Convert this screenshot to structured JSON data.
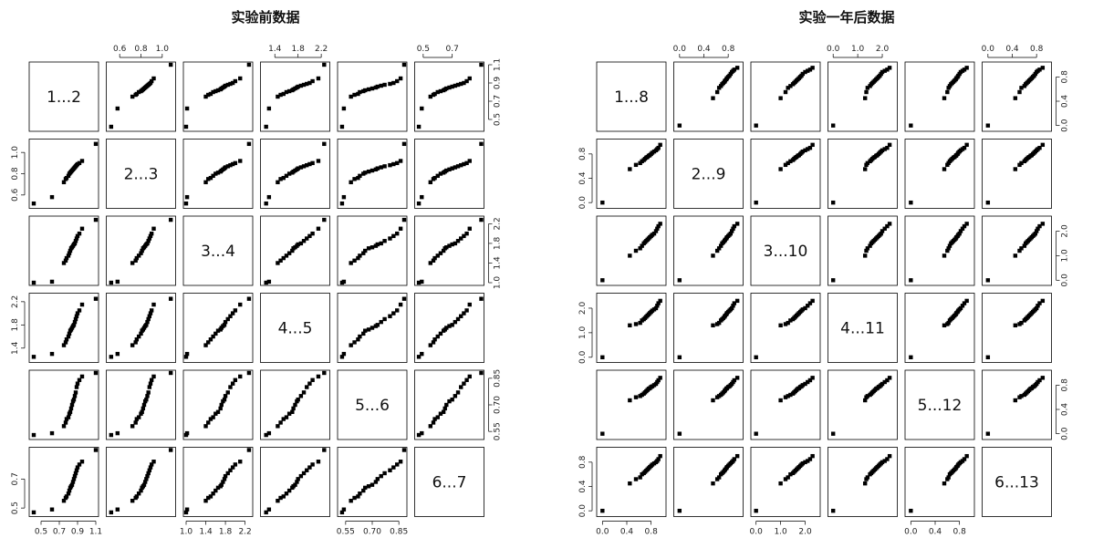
{
  "chart_data": [
    {
      "type": "scatter",
      "title": "实验前数据",
      "variables": [
        "1...2",
        "2...3",
        "3...4",
        "4...5",
        "5...6",
        "6...7"
      ],
      "ranges": [
        [
          0.4,
          1.1
        ],
        [
          0.5,
          1.1
        ],
        [
          1.0,
          2.3
        ],
        [
          1.2,
          2.3
        ],
        [
          0.52,
          0.88
        ],
        [
          0.46,
          0.9
        ]
      ],
      "tick_labels": [
        [
          "0.5",
          "0.7",
          "0.9",
          "1.1"
        ],
        [
          "0.6",
          "0.8",
          "1.0"
        ],
        [
          "1.0",
          "1.4",
          "1.8",
          "2.2"
        ],
        [
          "1.4",
          "1.8",
          "2.2"
        ],
        [
          "0.55",
          "0.70",
          "0.85"
        ],
        [
          "0.5",
          "0.7"
        ]
      ],
      "observations": [
        [
          0.42,
          0.52,
          1.0,
          1.25,
          0.53,
          0.47
        ],
        [
          0.62,
          0.58,
          1.02,
          1.3,
          0.54,
          0.49
        ],
        [
          0.75,
          0.72,
          1.4,
          1.45,
          0.58,
          0.55
        ],
        [
          0.77,
          0.75,
          1.45,
          1.5,
          0.6,
          0.57
        ],
        [
          0.78,
          0.76,
          1.5,
          1.55,
          0.62,
          0.58
        ],
        [
          0.8,
          0.78,
          1.55,
          1.6,
          0.63,
          0.6
        ],
        [
          0.81,
          0.8,
          1.6,
          1.65,
          0.65,
          0.62
        ],
        [
          0.82,
          0.81,
          1.65,
          1.7,
          0.66,
          0.64
        ],
        [
          0.83,
          0.82,
          1.7,
          1.72,
          0.68,
          0.65
        ],
        [
          0.84,
          0.83,
          1.72,
          1.75,
          0.7,
          0.66
        ],
        [
          0.85,
          0.84,
          1.75,
          1.78,
          0.72,
          0.68
        ],
        [
          0.86,
          0.85,
          1.78,
          1.8,
          0.73,
          0.7
        ],
        [
          0.87,
          0.86,
          1.8,
          1.85,
          0.75,
          0.72
        ],
        [
          0.88,
          0.87,
          1.85,
          1.9,
          0.77,
          0.74
        ],
        [
          0.89,
          0.88,
          1.9,
          1.95,
          0.8,
          0.76
        ],
        [
          0.9,
          0.89,
          1.95,
          2.0,
          0.82,
          0.78
        ],
        [
          0.92,
          0.9,
          2.0,
          2.05,
          0.84,
          0.8
        ],
        [
          0.95,
          0.92,
          2.1,
          2.15,
          0.86,
          0.82
        ],
        [
          1.1,
          1.08,
          2.28,
          2.25,
          0.88,
          0.9
        ]
      ]
    },
    {
      "type": "scatter",
      "title": "实验一年后数据",
      "variables": [
        "1...8",
        "2...9",
        "3...10",
        "4...11",
        "5...12",
        "6...13"
      ],
      "ranges": [
        [
          -0.05,
          1.0
        ],
        [
          -0.05,
          1.0
        ],
        [
          -0.1,
          2.5
        ],
        [
          -0.1,
          2.5
        ],
        [
          -0.05,
          1.0
        ],
        [
          -0.05,
          1.0
        ]
      ],
      "tick_labels": [
        [
          "0.0",
          "0.4",
          "0.8"
        ],
        [
          "0.0",
          "0.4",
          "0.8"
        ],
        [
          "0.0",
          "1.0",
          "2.0"
        ],
        [
          "0.0",
          "1.0",
          "2.0"
        ],
        [
          "0.0",
          "0.4",
          "0.8"
        ],
        [
          "0.0",
          "0.4",
          "0.8"
        ]
      ],
      "observations": [
        [
          0.0,
          0.0,
          0.0,
          0.0,
          0.0,
          0.0
        ],
        [
          0.45,
          0.55,
          1.0,
          1.3,
          0.55,
          0.45
        ],
        [
          0.55,
          0.62,
          1.2,
          1.35,
          0.6,
          0.52
        ],
        [
          0.62,
          0.65,
          1.3,
          1.4,
          0.62,
          0.55
        ],
        [
          0.65,
          0.68,
          1.4,
          1.5,
          0.64,
          0.6
        ],
        [
          0.68,
          0.7,
          1.5,
          1.55,
          0.66,
          0.62
        ],
        [
          0.7,
          0.72,
          1.55,
          1.6,
          0.68,
          0.64
        ],
        [
          0.72,
          0.74,
          1.6,
          1.65,
          0.7,
          0.66
        ],
        [
          0.74,
          0.75,
          1.65,
          1.7,
          0.72,
          0.68
        ],
        [
          0.76,
          0.77,
          1.7,
          1.75,
          0.74,
          0.7
        ],
        [
          0.78,
          0.78,
          1.75,
          1.8,
          0.75,
          0.72
        ],
        [
          0.8,
          0.8,
          1.8,
          1.85,
          0.77,
          0.74
        ],
        [
          0.82,
          0.82,
          1.85,
          1.9,
          0.78,
          0.76
        ],
        [
          0.85,
          0.84,
          1.9,
          1.95,
          0.8,
          0.78
        ],
        [
          0.88,
          0.86,
          2.0,
          2.0,
          0.82,
          0.8
        ],
        [
          0.9,
          0.88,
          2.1,
          2.1,
          0.85,
          0.82
        ],
        [
          0.92,
          0.9,
          2.2,
          2.2,
          0.88,
          0.85
        ],
        [
          0.95,
          0.95,
          2.3,
          2.3,
          0.92,
          0.9
        ]
      ]
    }
  ]
}
